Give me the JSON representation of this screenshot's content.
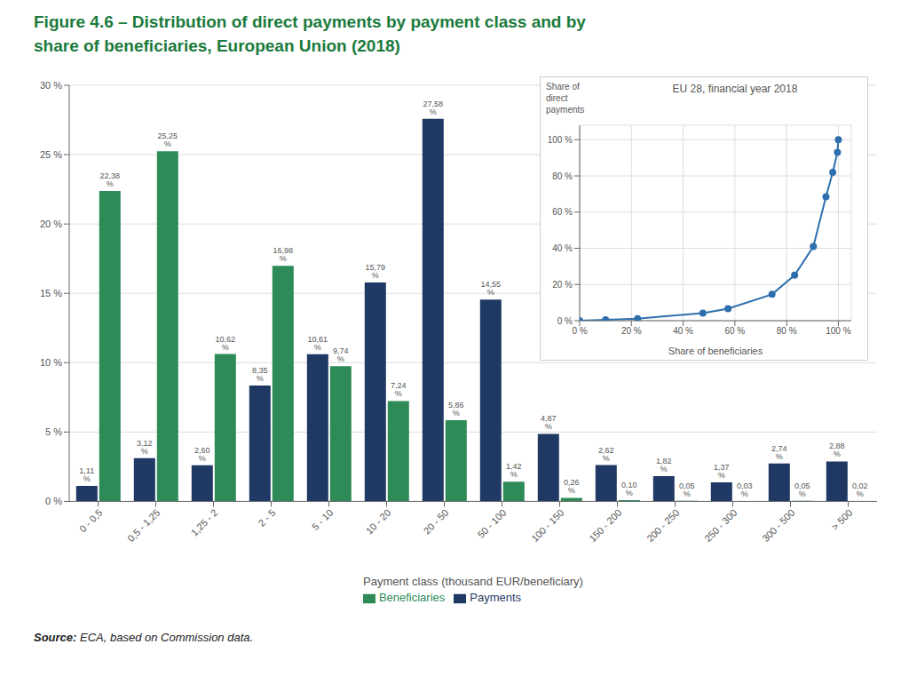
{
  "chart_data": [
    {
      "type": "bar",
      "title": "Figure 4.6 – Distribution of direct payments by payment class and by\nshare of beneficiaries, European Union (2018)",
      "title_color": "#1a7a3c",
      "categories": [
        "0 - 0,5",
        "0,5 - 1,25",
        "1,25 - 2",
        "2 - 5",
        "5 - 10",
        "10 - 20",
        "20 - 50",
        "50 - 100",
        "100 - 150",
        "150 - 200",
        "200 - 250",
        "250 - 300",
        "300 - 500",
        "> 500"
      ],
      "series": [
        {
          "name": "Payments",
          "color": "#1f3864",
          "values": [
            1.11,
            3.12,
            2.6,
            8.35,
            10.61,
            15.79,
            27.58,
            14.55,
            4.87,
            2.62,
            1.82,
            1.37,
            2.74,
            2.88
          ],
          "value_labels": [
            "1,11 %",
            "3,12 %",
            "2,60 %",
            "8,35 %",
            "10,61 %",
            "15,79 %",
            "27,58 %",
            "14,55 %",
            "4,87 %",
            "2,62 %",
            "1,82 %",
            "1,37 %",
            "2,74 %",
            "2,88 %"
          ]
        },
        {
          "name": "Beneficiaries",
          "color": "#2e8b57",
          "values": [
            22.38,
            25.25,
            10.62,
            16.98,
            9.74,
            7.24,
            5.86,
            1.42,
            0.26,
            0.1,
            0.05,
            0.03,
            0.05,
            0.02
          ],
          "value_labels": [
            "22,38 %",
            "25,25 %",
            "10,62 %",
            "16,98 %",
            "9,74 %",
            "7,24 %",
            "5,86 %",
            "1,42 %",
            "0,26 %",
            "0,10 %",
            "0,05 %",
            "0,03 %",
            "0,05 %",
            "0,02 %"
          ]
        }
      ],
      "xlabel": "Payment class (thousand EUR/beneficiary)",
      "ylim": [
        0,
        30
      ],
      "yticks": [
        {
          "value": 0,
          "label": "0 %"
        },
        {
          "value": 5,
          "label": "5 %"
        },
        {
          "value": 10,
          "label": "10 %"
        },
        {
          "value": 15,
          "label": "15 %"
        },
        {
          "value": 20,
          "label": "20 %"
        },
        {
          "value": 25,
          "label": "25 %"
        },
        {
          "value": 30,
          "label": "30 %"
        }
      ],
      "grid": true,
      "data_labels": true,
      "legend": "bottom",
      "annotations": [
        "Source: ECA, based on Commission data."
      ]
    },
    {
      "type": "line",
      "title": "EU 28, financial year 2018",
      "x": [
        0,
        10,
        22.38,
        47.63,
        57.37,
        74.35,
        83.09,
        90.33,
        95.2,
        97.82,
        99.64,
        100.0
      ],
      "values": [
        0,
        0.5,
        1.11,
        4.23,
        6.65,
        14.55,
        25.16,
        40.95,
        68.53,
        82.0,
        93.0,
        100.0
      ],
      "color": "#2e6fad",
      "marker": "circle",
      "xlabel": "Share of beneficiaries",
      "ylabel": "Share of\ndirect\npayments",
      "xlim": [
        0,
        105
      ],
      "ylim": [
        0,
        108
      ],
      "xticks": [
        {
          "value": 0,
          "label": "0 %"
        },
        {
          "value": 20,
          "label": "20 %"
        },
        {
          "value": 40,
          "label": "40 %"
        },
        {
          "value": 60,
          "label": "60 %"
        },
        {
          "value": 80,
          "label": "80 %"
        },
        {
          "value": 100,
          "label": "100 %"
        }
      ],
      "yticks": [
        {
          "value": 0,
          "label": "0 %"
        },
        {
          "value": 20,
          "label": "20 %"
        },
        {
          "value": 40,
          "label": "40 %"
        },
        {
          "value": 60,
          "label": "60 %"
        },
        {
          "value": 80,
          "label": "80 %"
        },
        {
          "value": 100,
          "label": "100 %"
        }
      ],
      "grid": true
    }
  ]
}
